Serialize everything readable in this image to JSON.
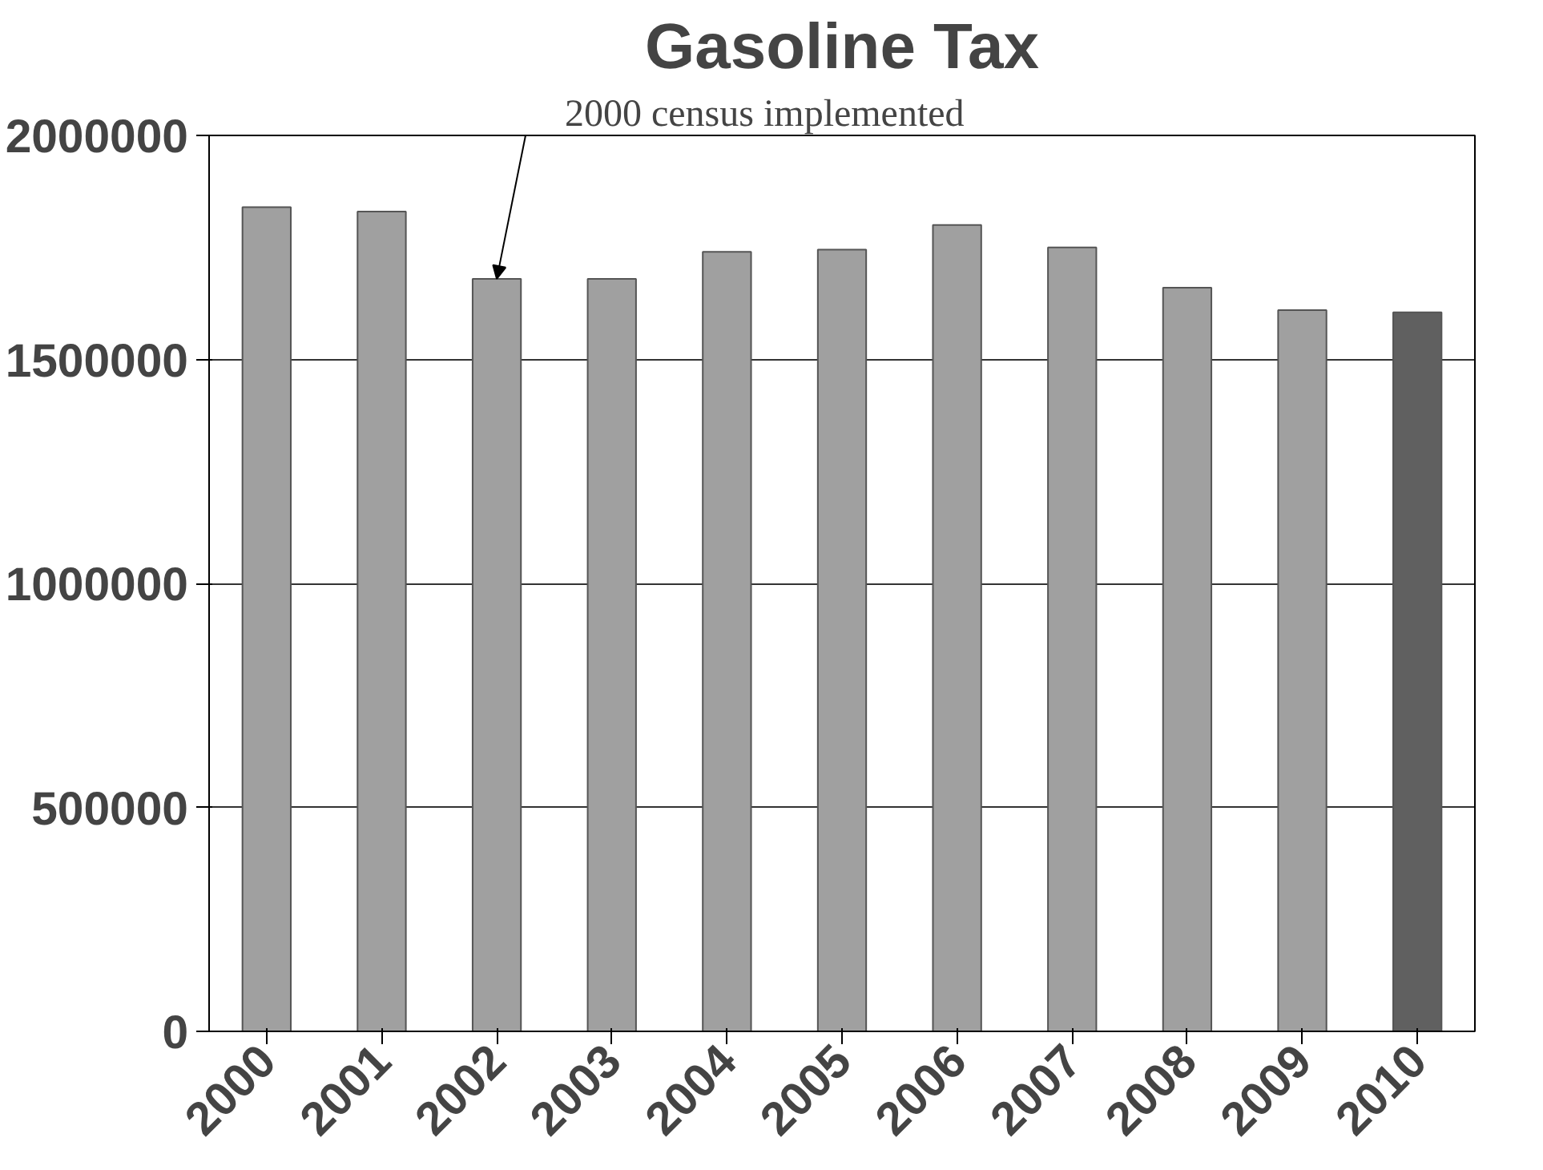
{
  "chart_data": {
    "type": "bar",
    "title": "Gasoline Tax",
    "categories": [
      "2000",
      "2001",
      "2002",
      "2003",
      "2004",
      "2005",
      "2006",
      "2007",
      "2008",
      "2009",
      "2010"
    ],
    "values": [
      1840000,
      1830000,
      1680000,
      1680000,
      1740000,
      1745000,
      1800000,
      1750000,
      1660000,
      1610000,
      1605000
    ],
    "colors": [
      "#a0a0a0",
      "#a0a0a0",
      "#a0a0a0",
      "#a0a0a0",
      "#a0a0a0",
      "#a0a0a0",
      "#a0a0a0",
      "#a0a0a0",
      "#a0a0a0",
      "#a0a0a0",
      "#606060"
    ],
    "ylim": [
      0,
      2000000
    ],
    "yticks": [
      0,
      500000,
      1000000,
      1500000,
      2000000
    ],
    "grid": "y",
    "annotations": [
      {
        "text": "2000 census implemented",
        "x": "2002",
        "y": 1680000
      }
    ]
  }
}
